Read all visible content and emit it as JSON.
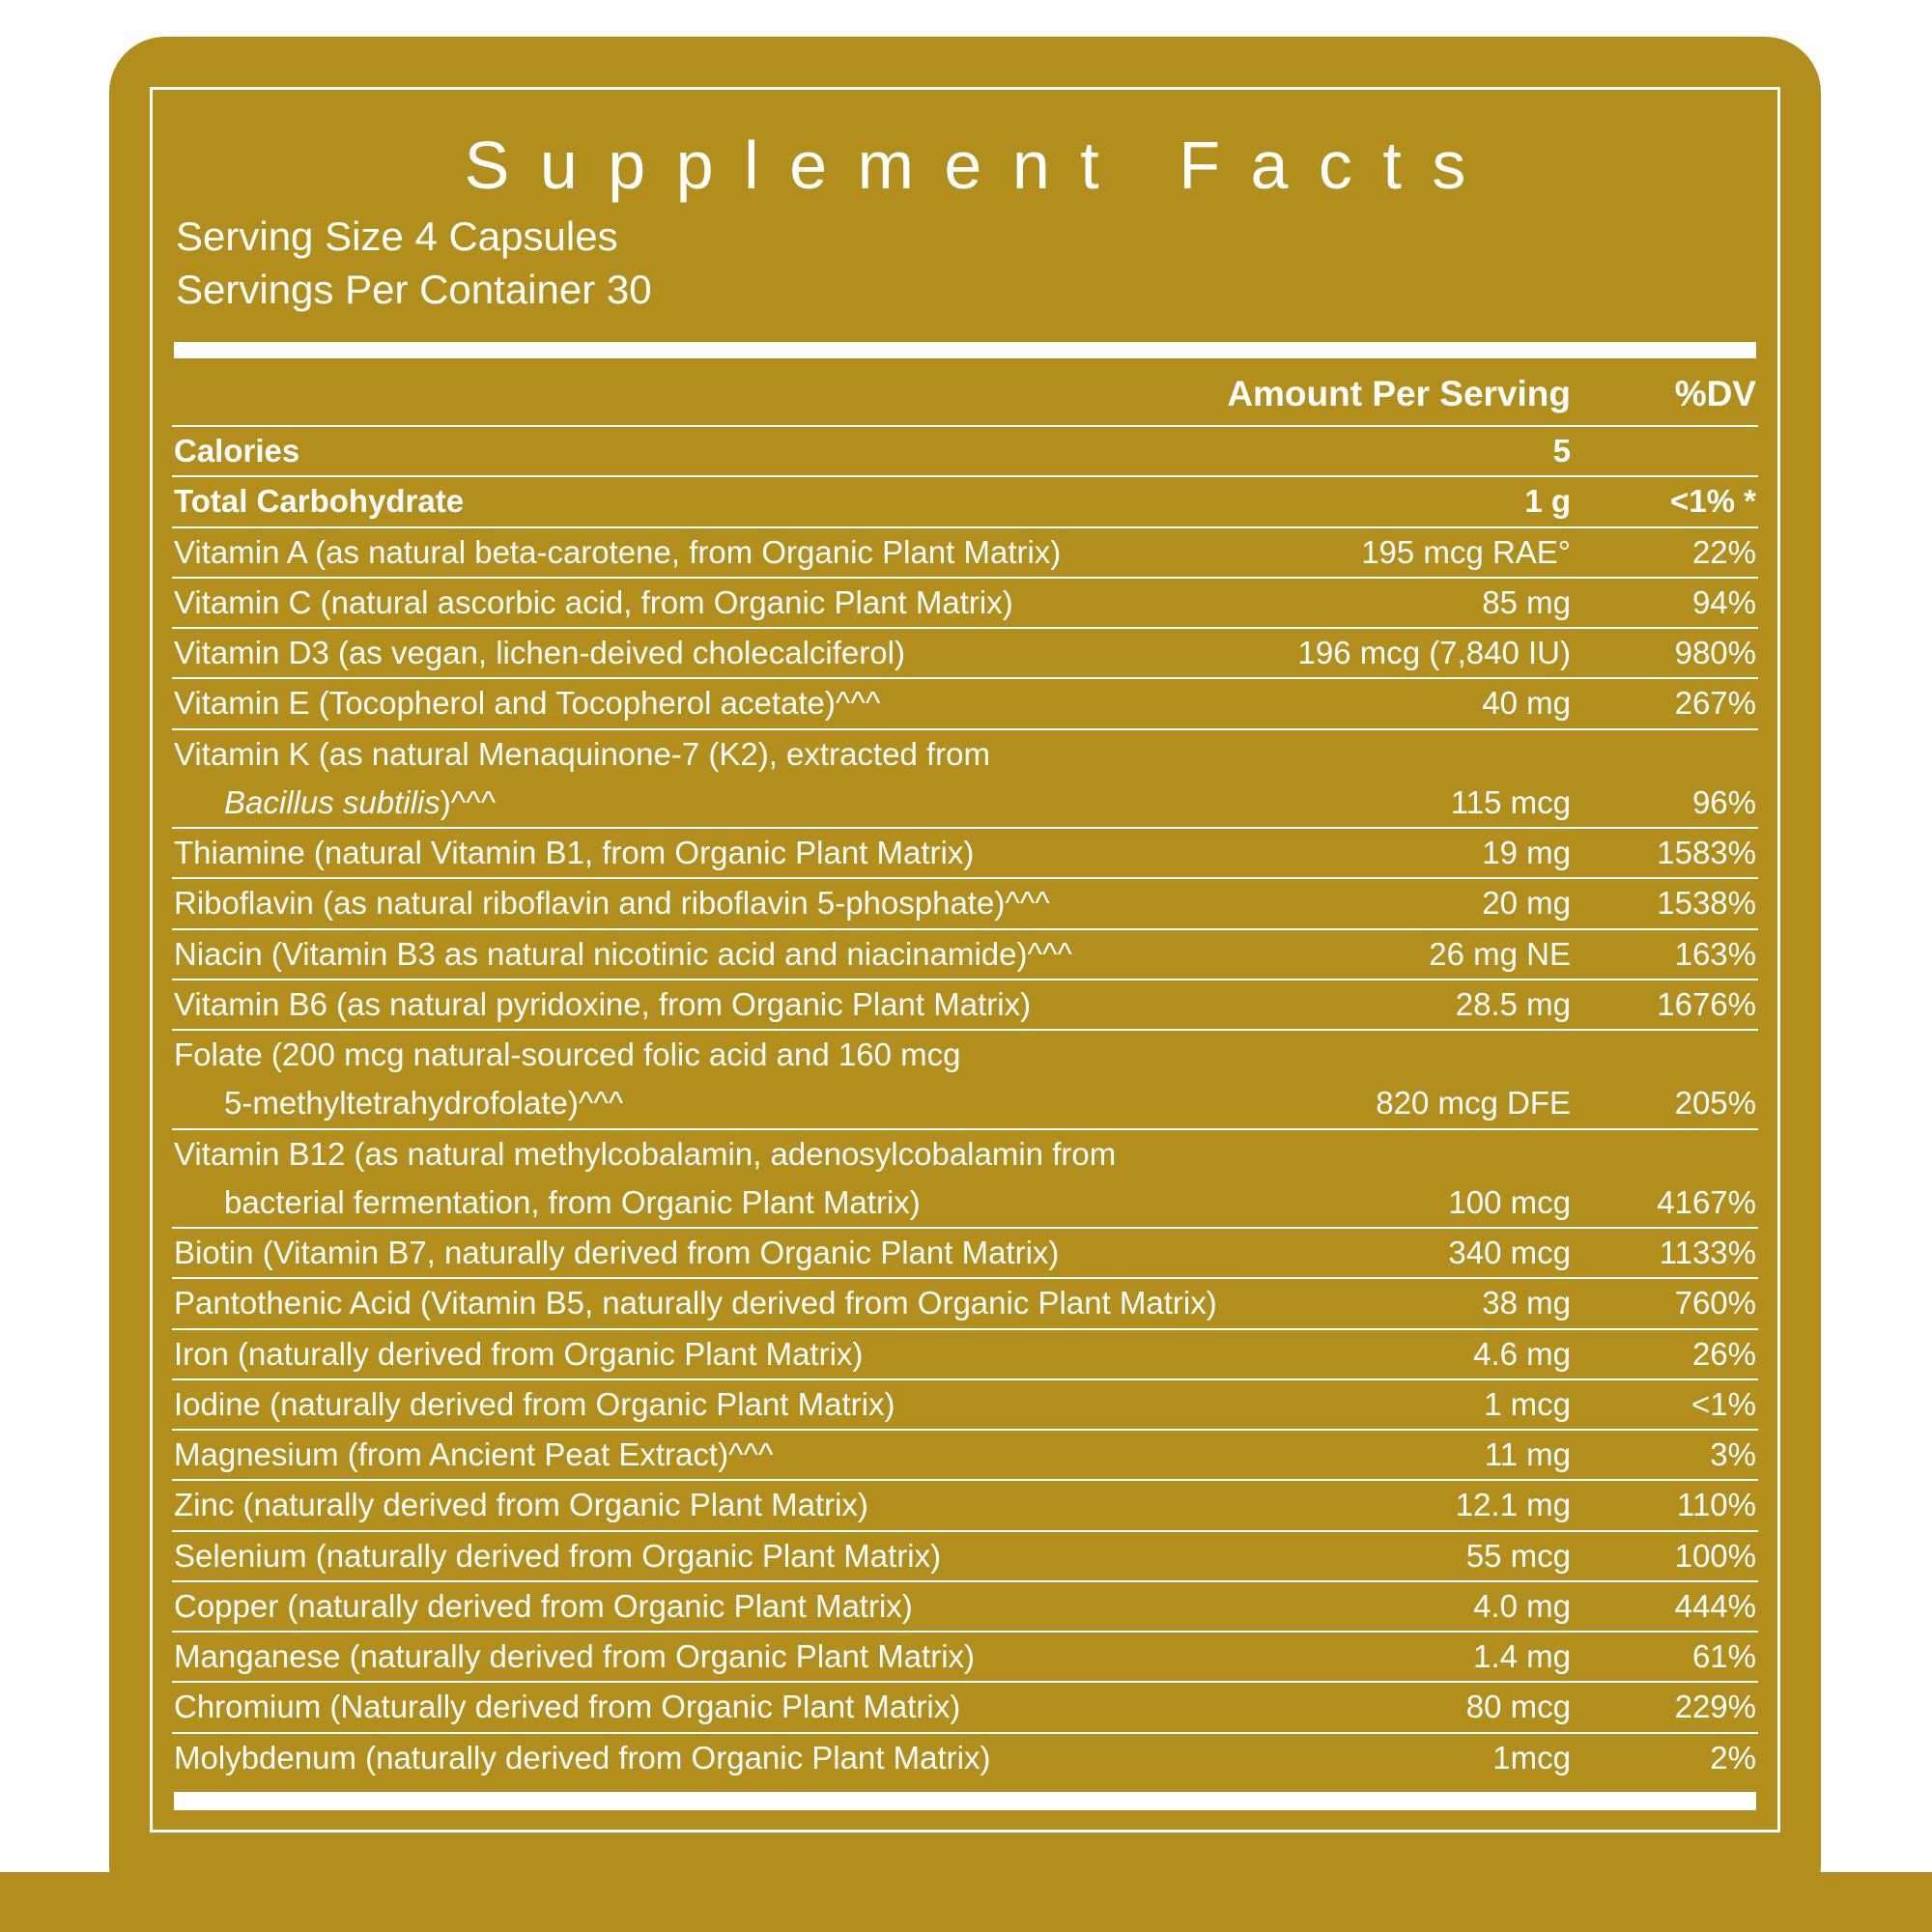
{
  "panel": {
    "title": "Supplement Facts",
    "serving_size": "Serving Size 4 Capsules",
    "servings_per_container": "Servings Per Container 30",
    "columns": {
      "amount": "Amount Per Serving",
      "dv": "%DV"
    }
  },
  "colors": {
    "gold": "#B28E1C",
    "text": "#FFFFFF"
  },
  "rows": [
    {
      "name": "Calories",
      "amount": "5",
      "dv": "",
      "bold": true
    },
    {
      "name": "Total Carbohydrate",
      "amount": "1 g",
      "dv": "<1% *",
      "bold": true
    },
    {
      "name": "Vitamin A (as natural beta-carotene, from Organic Plant Matrix)",
      "amount": "195 mcg RAE°",
      "dv": "22%"
    },
    {
      "name": "Vitamin C (natural ascorbic acid, from Organic Plant Matrix)",
      "amount": "85 mg",
      "dv": "94%"
    },
    {
      "name": "Vitamin D3 (as vegan, lichen-deived cholecalciferol)",
      "amount": "196 mcg (7,840 IU)",
      "dv": "980%"
    },
    {
      "name": "Vitamin E (Tocopherol and Tocopherol acetate)^^^",
      "amount": "40 mg",
      "dv": "267%"
    },
    {
      "name": "Vitamin K (as natural Menaquinone-7 (K2), extracted from",
      "name2_italic": "Bacillus subtilis",
      "name2": ")^^^",
      "amount": "115 mcg",
      "dv": "96%"
    },
    {
      "name": "Thiamine (natural Vitamin B1, from Organic Plant Matrix)",
      "amount": "19 mg",
      "dv": "1583%"
    },
    {
      "name": "Riboflavin (as natural riboflavin and riboflavin 5-phosphate)^^^",
      "amount": "20 mg",
      "dv": "1538%"
    },
    {
      "name": "Niacin (Vitamin B3 as natural nicotinic acid and niacinamide)^^^",
      "amount": "26 mg NE",
      "dv": "163%"
    },
    {
      "name": "Vitamin B6 (as natural pyridoxine, from Organic Plant Matrix)",
      "amount": "28.5 mg",
      "dv": "1676%"
    },
    {
      "name": "Folate (200 mcg natural-sourced folic acid and 160 mcg",
      "name2": "5-methyltetrahydrofolate)^^^",
      "amount": "820 mcg DFE",
      "dv": "205%"
    },
    {
      "name": "Vitamin B12 (as natural methylcobalamin, adenosylcobalamin from",
      "name2": "bacterial fermentation, from Organic Plant Matrix)",
      "amount": "100 mcg",
      "dv": "4167%"
    },
    {
      "name": "Biotin (Vitamin B7, naturally derived from Organic Plant Matrix)",
      "amount": "340 mcg",
      "dv": "1133%"
    },
    {
      "name": "Pantothenic Acid (Vitamin B5, naturally derived from Organic Plant Matrix)",
      "amount": "38 mg",
      "dv": "760%"
    },
    {
      "name": "Iron (naturally derived from Organic Plant Matrix)",
      "amount": "4.6 mg",
      "dv": "26%"
    },
    {
      "name": "Iodine (naturally derived from Organic Plant Matrix)",
      "amount": "1 mcg",
      "dv": "<1%"
    },
    {
      "name": "Magnesium (from Ancient Peat Extract)^^^",
      "amount": "11 mg",
      "dv": "3%"
    },
    {
      "name": "Zinc (naturally derived from Organic Plant Matrix)",
      "amount": "12.1 mg",
      "dv": "110%"
    },
    {
      "name": "Selenium (naturally derived from Organic Plant Matrix)",
      "amount": "55 mcg",
      "dv": "100%"
    },
    {
      "name": "Copper (naturally derived from Organic Plant Matrix)",
      "amount": "4.0 mg",
      "dv": "444%"
    },
    {
      "name": "Manganese (naturally derived from Organic Plant Matrix)",
      "amount": "1.4 mg",
      "dv": "61%"
    },
    {
      "name": "Chromium (Naturally derived from Organic Plant Matrix)",
      "amount": "80 mcg",
      "dv": "229%"
    },
    {
      "name": "Molybdenum (naturally derived from Organic Plant Matrix)",
      "amount": "1mcg",
      "dv": "2%"
    }
  ]
}
